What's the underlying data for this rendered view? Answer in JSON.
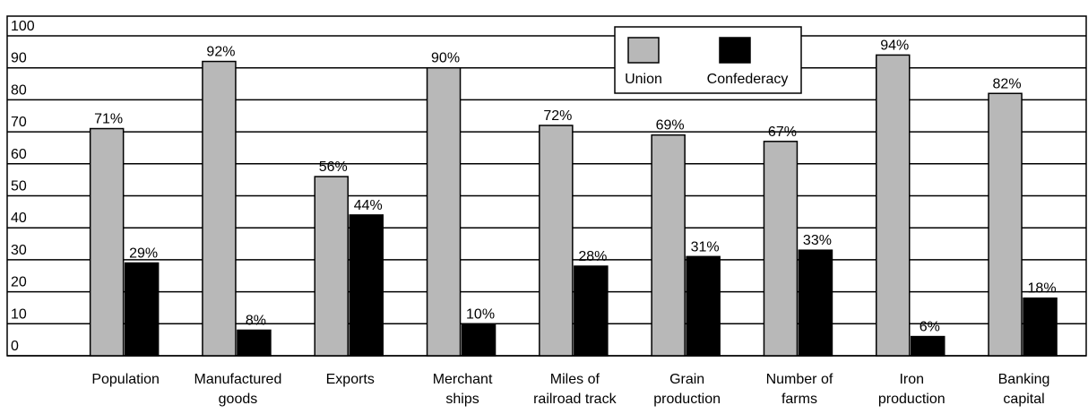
{
  "chart_data": {
    "type": "bar",
    "categories": [
      "Population",
      "Manufactured\ngoods",
      "Exports",
      "Merchant\nships",
      "Miles of\nrailroad track",
      "Grain\nproduction",
      "Number of\nfarms",
      "Iron\nproduction",
      "Banking\ncapital"
    ],
    "series": [
      {
        "name": "Union",
        "color": "#b8b8b8",
        "values": [
          71,
          92,
          56,
          90,
          72,
          69,
          67,
          94,
          82
        ],
        "value_labels": [
          "71%",
          "92%",
          "56%",
          "90%",
          "72%",
          "69%",
          "67%",
          "94%",
          "82%"
        ]
      },
      {
        "name": "Confederacy",
        "color": "#000000",
        "values": [
          29,
          8,
          44,
          10,
          28,
          31,
          33,
          6,
          18
        ],
        "value_labels": [
          "29%",
          "8%",
          "44%",
          "10%",
          "28%",
          "31%",
          "33%",
          "6%",
          "18%"
        ]
      }
    ],
    "ylim": [
      0,
      100
    ],
    "yticks": [
      0,
      10,
      20,
      30,
      40,
      50,
      60,
      70,
      80,
      90,
      100
    ],
    "grid": true
  }
}
